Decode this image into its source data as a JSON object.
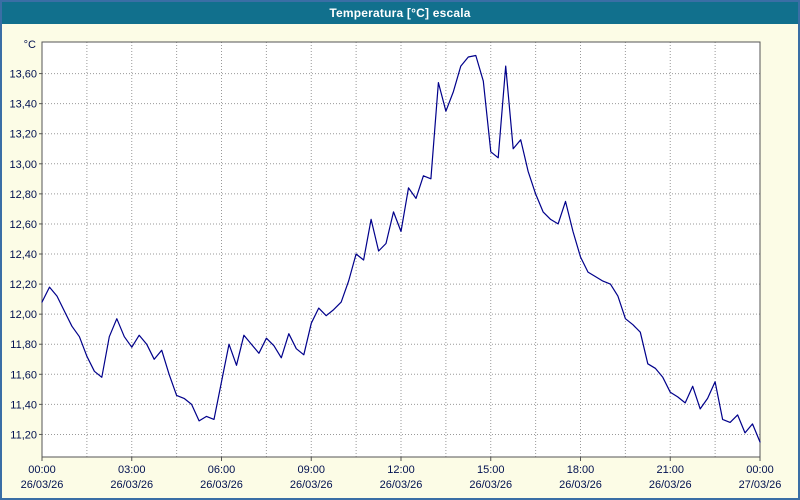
{
  "window": {
    "title": "Temperatura [°C] escala"
  },
  "colors": {
    "titlebar_bg": "#11708d",
    "window_bg": "#fcfce6",
    "window_border": "#3a6ea5",
    "plot_bg": "#ffffff",
    "plot_border": "#555555",
    "grid": "#999999",
    "line": "#00008b",
    "text": "#001050"
  },
  "chart_data": {
    "type": "line",
    "title": "Temperatura [°C] escala",
    "y_unit": "°C",
    "ylabel": "°C",
    "xlabel": "",
    "grid": true,
    "legend_position": "none",
    "y_axis": {
      "min": 11.05,
      "max": 13.81,
      "grid_start": 11.2,
      "grid_step": 0.2,
      "grid_end": 13.6,
      "decimal_separator": ","
    },
    "x_axis": {
      "min": 0,
      "max": 24,
      "grid_step_hours": 1.5,
      "label_step_hours": 3,
      "ticks": [
        {
          "t": 0,
          "time": "00:00",
          "date": "26/03/26"
        },
        {
          "t": 3,
          "time": "03:00",
          "date": "26/03/26"
        },
        {
          "t": 6,
          "time": "06:00",
          "date": "26/03/26"
        },
        {
          "t": 9,
          "time": "09:00",
          "date": "26/03/26"
        },
        {
          "t": 12,
          "time": "12:00",
          "date": "26/03/26"
        },
        {
          "t": 15,
          "time": "15:00",
          "date": "26/03/26"
        },
        {
          "t": 18,
          "time": "18:00",
          "date": "26/03/26"
        },
        {
          "t": 21,
          "time": "21:00",
          "date": "26/03/26"
        },
        {
          "t": 24,
          "time": "00:00",
          "date": "27/03/26"
        }
      ]
    },
    "series": [
      {
        "name": "Temperatura",
        "color": "#00008b",
        "points": [
          [
            0.0,
            12.08
          ],
          [
            0.25,
            12.18
          ],
          [
            0.5,
            12.12
          ],
          [
            0.75,
            12.02
          ],
          [
            1.0,
            11.92
          ],
          [
            1.25,
            11.85
          ],
          [
            1.5,
            11.72
          ],
          [
            1.75,
            11.62
          ],
          [
            2.0,
            11.58
          ],
          [
            2.25,
            11.85
          ],
          [
            2.5,
            11.97
          ],
          [
            2.75,
            11.85
          ],
          [
            3.0,
            11.78
          ],
          [
            3.25,
            11.86
          ],
          [
            3.5,
            11.8
          ],
          [
            3.75,
            11.7
          ],
          [
            4.0,
            11.76
          ],
          [
            4.25,
            11.6
          ],
          [
            4.5,
            11.46
          ],
          [
            4.75,
            11.44
          ],
          [
            5.0,
            11.4
          ],
          [
            5.25,
            11.29
          ],
          [
            5.5,
            11.32
          ],
          [
            5.75,
            11.3
          ],
          [
            6.0,
            11.55
          ],
          [
            6.25,
            11.8
          ],
          [
            6.5,
            11.66
          ],
          [
            6.75,
            11.86
          ],
          [
            7.0,
            11.8
          ],
          [
            7.25,
            11.74
          ],
          [
            7.5,
            11.84
          ],
          [
            7.75,
            11.79
          ],
          [
            8.0,
            11.71
          ],
          [
            8.25,
            11.87
          ],
          [
            8.5,
            11.77
          ],
          [
            8.75,
            11.73
          ],
          [
            9.0,
            11.94
          ],
          [
            9.25,
            12.04
          ],
          [
            9.5,
            11.99
          ],
          [
            9.75,
            12.03
          ],
          [
            10.0,
            12.08
          ],
          [
            10.25,
            12.22
          ],
          [
            10.5,
            12.4
          ],
          [
            10.75,
            12.36
          ],
          [
            11.0,
            12.63
          ],
          [
            11.25,
            12.42
          ],
          [
            11.5,
            12.47
          ],
          [
            11.75,
            12.68
          ],
          [
            12.0,
            12.55
          ],
          [
            12.25,
            12.84
          ],
          [
            12.5,
            12.77
          ],
          [
            12.75,
            12.92
          ],
          [
            13.0,
            12.9
          ],
          [
            13.25,
            13.54
          ],
          [
            13.5,
            13.35
          ],
          [
            13.75,
            13.48
          ],
          [
            14.0,
            13.65
          ],
          [
            14.25,
            13.71
          ],
          [
            14.5,
            13.72
          ],
          [
            14.75,
            13.55
          ],
          [
            15.0,
            13.08
          ],
          [
            15.25,
            13.04
          ],
          [
            15.5,
            13.65
          ],
          [
            15.75,
            13.1
          ],
          [
            16.0,
            13.16
          ],
          [
            16.25,
            12.95
          ],
          [
            16.5,
            12.8
          ],
          [
            16.75,
            12.68
          ],
          [
            17.0,
            12.63
          ],
          [
            17.25,
            12.6
          ],
          [
            17.5,
            12.75
          ],
          [
            17.75,
            12.55
          ],
          [
            18.0,
            12.38
          ],
          [
            18.25,
            12.28
          ],
          [
            18.5,
            12.25
          ],
          [
            18.75,
            12.22
          ],
          [
            19.0,
            12.2
          ],
          [
            19.25,
            12.12
          ],
          [
            19.5,
            11.97
          ],
          [
            19.75,
            11.93
          ],
          [
            20.0,
            11.88
          ],
          [
            20.25,
            11.67
          ],
          [
            20.5,
            11.64
          ],
          [
            20.75,
            11.58
          ],
          [
            21.0,
            11.48
          ],
          [
            21.25,
            11.45
          ],
          [
            21.5,
            11.41
          ],
          [
            21.75,
            11.52
          ],
          [
            22.0,
            11.37
          ],
          [
            22.25,
            11.44
          ],
          [
            22.5,
            11.55
          ],
          [
            22.75,
            11.3
          ],
          [
            23.0,
            11.28
          ],
          [
            23.25,
            11.33
          ],
          [
            23.5,
            11.21
          ],
          [
            23.75,
            11.27
          ],
          [
            24.0,
            11.15
          ]
        ]
      }
    ]
  }
}
